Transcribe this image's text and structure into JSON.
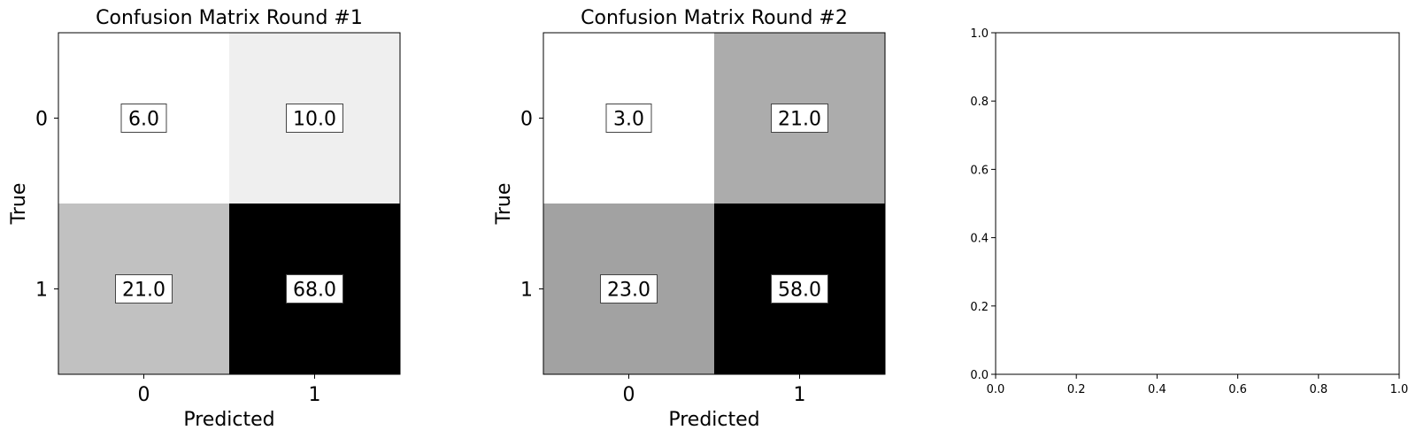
{
  "chart_data": [
    {
      "type": "heatmap",
      "title": "Confusion Matrix Round #1",
      "xlabel": "Predicted",
      "ylabel": "True",
      "x_ticks": [
        "0",
        "1"
      ],
      "y_ticks": [
        "0",
        "1"
      ],
      "values": [
        [
          6.0,
          10.0
        ],
        [
          21.0,
          68.0
        ]
      ],
      "cell_labels": [
        [
          "6.0",
          "10.0"
        ],
        [
          "21.0",
          "68.0"
        ]
      ],
      "colormap": "gray_r",
      "label_box": "white-box"
    },
    {
      "type": "heatmap",
      "title": "Confusion Matrix Round #2",
      "xlabel": "Predicted",
      "ylabel": "True",
      "x_ticks": [
        "0",
        "1"
      ],
      "y_ticks": [
        "0",
        "1"
      ],
      "values": [
        [
          3.0,
          21.0
        ],
        [
          23.0,
          58.0
        ]
      ],
      "cell_labels": [
        [
          "3.0",
          "21.0"
        ],
        [
          "23.0",
          "58.0"
        ]
      ],
      "colormap": "gray_r",
      "label_box": "white-box"
    },
    {
      "type": "scatter",
      "title": "",
      "xlabel": "",
      "ylabel": "",
      "xlim": [
        0.0,
        1.0
      ],
      "ylim": [
        0.0,
        1.0
      ],
      "x_ticks": [
        "0.0",
        "0.2",
        "0.4",
        "0.6",
        "0.8",
        "1.0"
      ],
      "y_ticks": [
        "0.0",
        "0.2",
        "0.4",
        "0.6",
        "0.8",
        "1.0"
      ],
      "series": []
    }
  ]
}
